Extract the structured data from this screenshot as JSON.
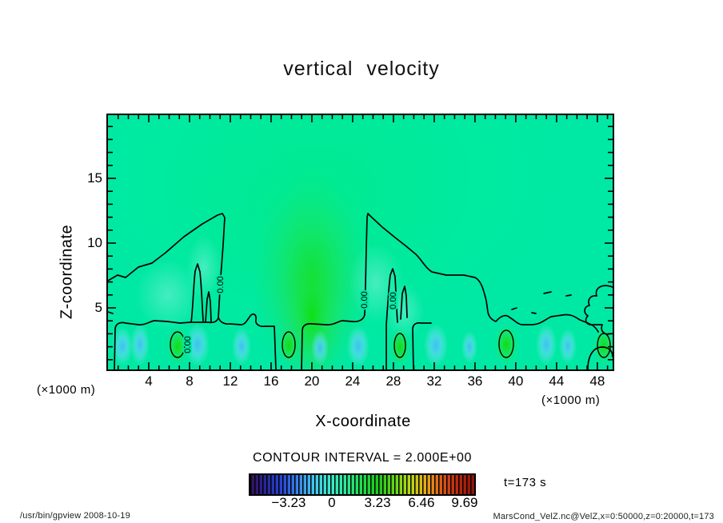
{
  "page": {
    "background": "#ffffff"
  },
  "chart_data": {
    "type": "filled_contour",
    "title": "vertical velocity",
    "xlabel": "X-coordinate",
    "ylabel": "Z-coordinate",
    "x_unit_label": "(×1000 m)",
    "y_unit_label": "(×1000 m)",
    "xlim": [
      0,
      50
    ],
    "ylim": [
      0,
      20
    ],
    "grid": false,
    "x_tick_values": [
      4,
      8,
      12,
      16,
      20,
      24,
      28,
      32,
      36,
      40,
      44,
      48
    ],
    "x_tick_labels": [
      "4",
      "8",
      "12",
      "16",
      "20",
      "24",
      "28",
      "32",
      "36",
      "40",
      "44",
      "48"
    ],
    "y_tick_values": [
      5,
      10,
      15
    ],
    "y_tick_labels": [
      "5",
      "10",
      "15"
    ],
    "contour_interval_label": "CONTOUR INTERVAL = 2.000E+00",
    "contour_line_label": "0.00",
    "time_label": "t=173 s",
    "colorbar": {
      "tick_labels": [
        "−3.23",
        "0",
        "3.23",
        "6.46",
        "9.69"
      ],
      "tick_positions": [
        0.171,
        0.364,
        0.568,
        0.764,
        0.957
      ],
      "colors": [
        "#38105c",
        "#28289c",
        "#2848d8",
        "#3a86e8",
        "#44c8f0",
        "#3ce8c8",
        "#2ce896",
        "#20dc48",
        "#1cc81c",
        "#66d41c",
        "#b8d818",
        "#e8a818",
        "#d85818",
        "#b82810",
        "#8c1408"
      ]
    },
    "field": {
      "description": "Vertical velocity field: zero contour outlines two plume-shaped regions reaching z≈12 (×1000 m) near x≈11 and x≈25, above a shallow layer (z≲4) of alternating updraft (green) and downdraft (blue) cells",
      "updraft_cell_centers_x": [
        6.8,
        17.7,
        28.6,
        39.1,
        48.6
      ],
      "downdraft_cell_centers_x": [
        1.4,
        3.1,
        8.8,
        13.1,
        20.8,
        24.6,
        32.2,
        35.5,
        43.0,
        45.1
      ],
      "cell_center_z": 2.2,
      "zero_contour_peak_points": [
        [
          11.2,
          12.3
        ],
        [
          25.5,
          12.3
        ]
      ]
    }
  },
  "colors": {
    "plot_background": "#00e9a4",
    "plume_core": "#12df12",
    "downdraft_patch": "#46c4f6",
    "contour_line": "#000000",
    "text": "#000000"
  },
  "footer": {
    "left": "/usr/bin/gpview  2008-10-19",
    "right": "MarsCond_VelZ.nc@VelZ,x=0:50000,z=0:20000,t=173"
  }
}
